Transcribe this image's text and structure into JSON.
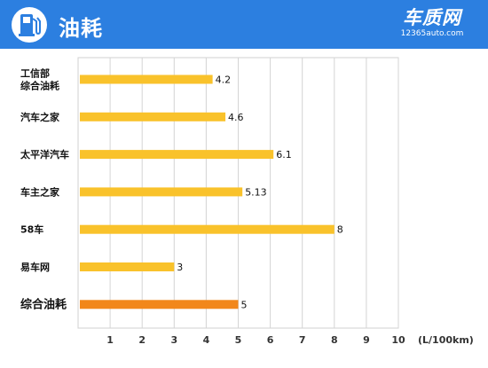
{
  "header": {
    "title": "油耗",
    "icon": "fuel-pump-icon",
    "brand": {
      "name": "车质网",
      "url": "12365auto.com"
    },
    "color": "#2c7fe0"
  },
  "chart_data": {
    "type": "bar",
    "orientation": "horizontal",
    "categories": [
      "工信部\n综合油耗",
      "汽车之家",
      "太平洋汽车",
      "车主之家",
      "58车",
      "易车网",
      "综合油耗"
    ],
    "values": [
      4.2,
      4.6,
      6.1,
      5.13,
      8,
      3,
      5
    ],
    "value_labels": [
      "4.2",
      "4.6",
      "6.1",
      "5.13",
      "8",
      "3",
      "5"
    ],
    "highlight_index": 6,
    "xlim": [
      0,
      10
    ],
    "xticks": [
      1,
      2,
      3,
      4,
      5,
      6,
      7,
      8,
      9,
      10
    ],
    "xlabel": "(L/100km)",
    "grid": "vertical",
    "colors": {
      "bar": "#f9c22b",
      "highlight_bar": "#f2871a",
      "highlight_label": "#d0312d"
    }
  }
}
